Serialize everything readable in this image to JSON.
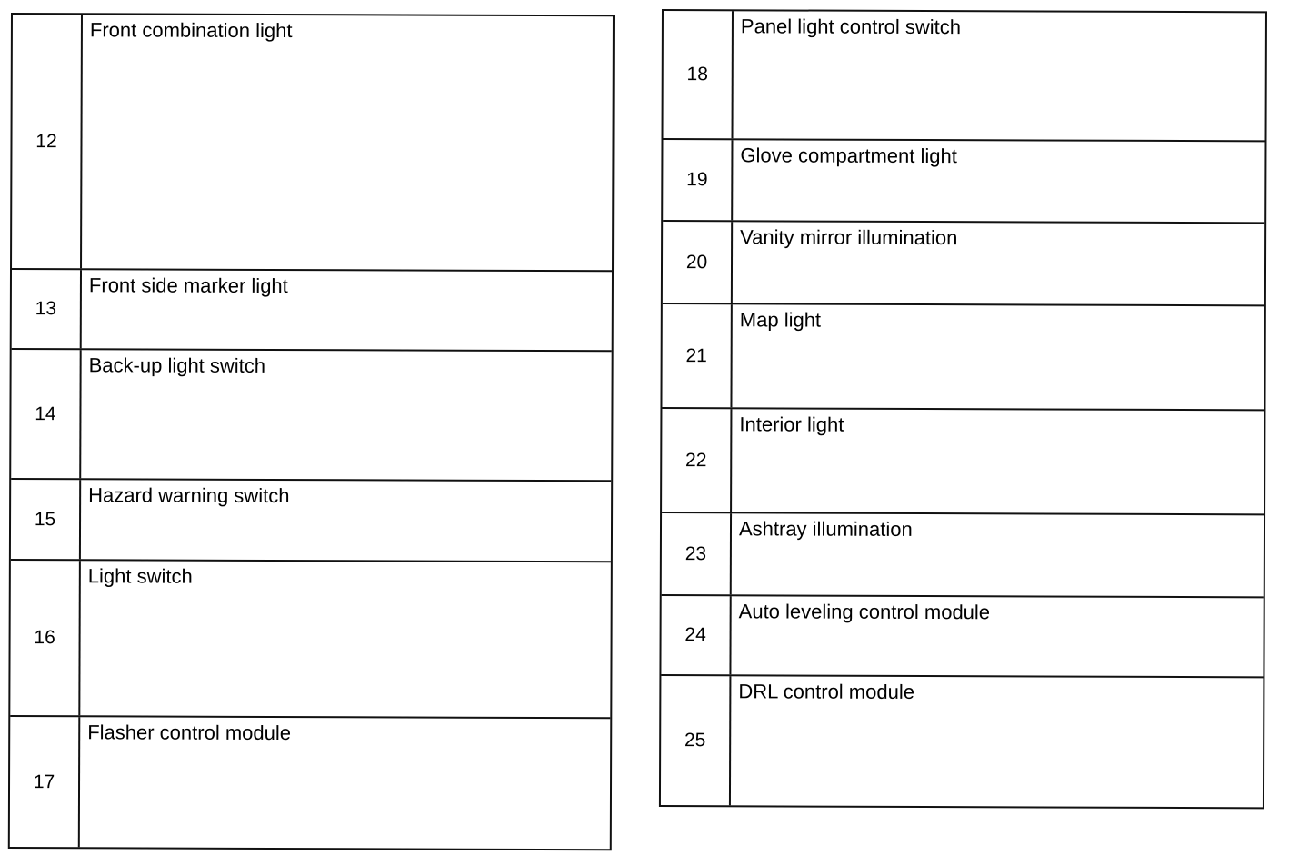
{
  "left_table": [
    {
      "number": "12",
      "description": "Front combination light"
    },
    {
      "number": "13",
      "description": "Front side marker light"
    },
    {
      "number": "14",
      "description": "Back-up light switch"
    },
    {
      "number": "15",
      "description": "Hazard warning switch"
    },
    {
      "number": "16",
      "description": "Light switch"
    },
    {
      "number": "17",
      "description": "Flasher control module"
    }
  ],
  "right_table": [
    {
      "number": "18",
      "description": "Panel light control switch"
    },
    {
      "number": "19",
      "description": "Glove compartment light"
    },
    {
      "number": "20",
      "description": "Vanity mirror illumination"
    },
    {
      "number": "21",
      "description": "Map light"
    },
    {
      "number": "22",
      "description": "Interior light"
    },
    {
      "number": "23",
      "description": "Ashtray illumination"
    },
    {
      "number": "24",
      "description": "Auto leveling control module"
    },
    {
      "number": "25",
      "description": "DRL control module"
    }
  ]
}
